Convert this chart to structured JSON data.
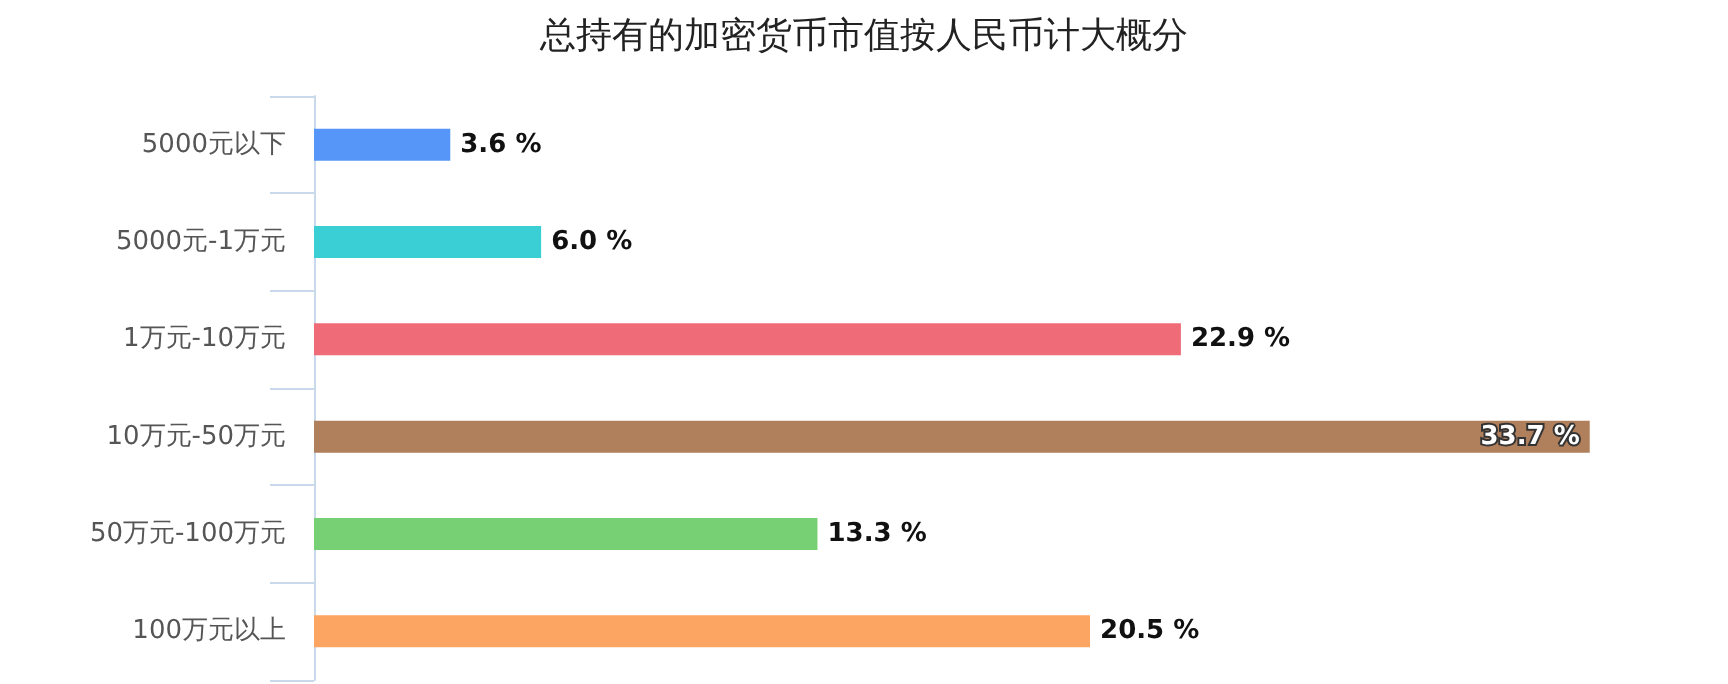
{
  "chart_data": {
    "type": "bar",
    "orientation": "horizontal",
    "title": "总持有的加密货币市值按人民币计大概分",
    "categories": [
      "5000元以下",
      "5000元-1万元",
      "1万元-10万元",
      "10万元-50万元",
      "50万元-100万元",
      "100万元以上"
    ],
    "values": [
      3.6,
      6.0,
      22.9,
      33.7,
      13.3,
      20.5
    ],
    "colors": [
      "#5596f8",
      "#3acfd5",
      "#ef6b78",
      "#b07f5c",
      "#77d174",
      "#fca462"
    ],
    "value_labels": [
      "3.6 %",
      "6.0 %",
      "22.9 %",
      "33.7 %",
      "13.3 %",
      "20.5 %"
    ]
  }
}
